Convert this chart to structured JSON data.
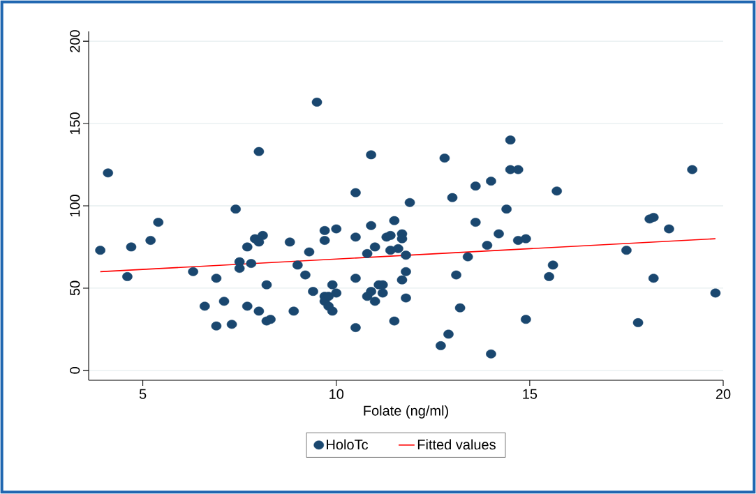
{
  "chart_data": {
    "type": "scatter",
    "xlabel": "Folate (ng/ml)",
    "xlim": [
      3.6,
      20
    ],
    "ylim": [
      -6,
      206
    ],
    "xticks": [
      5,
      10,
      15,
      20
    ],
    "yticks": [
      0,
      50,
      100,
      150,
      200
    ],
    "grid": "y",
    "legend": "bottom",
    "series": [
      {
        "name": "HoloTc",
        "marker": "circle",
        "color": "#1a476f",
        "x": [
          3.9,
          4.1,
          4.6,
          4.7,
          5.2,
          5.4,
          6.3,
          6.6,
          6.9,
          6.9,
          7.1,
          7.3,
          7.4,
          7.5,
          7.5,
          7.7,
          7.7,
          7.8,
          7.9,
          8.0,
          8.0,
          8.0,
          8.1,
          8.2,
          8.2,
          8.3,
          8.8,
          8.9,
          9.0,
          9.2,
          9.3,
          9.4,
          9.5,
          9.7,
          9.7,
          9.7,
          9.7,
          9.8,
          9.8,
          9.9,
          9.9,
          10.0,
          10.0,
          10.5,
          10.5,
          10.5,
          10.5,
          10.8,
          10.8,
          10.9,
          10.9,
          10.9,
          11.0,
          11.0,
          11.1,
          11.2,
          11.2,
          11.3,
          11.4,
          11.4,
          11.5,
          11.5,
          11.6,
          11.7,
          11.7,
          11.7,
          11.8,
          11.8,
          11.8,
          11.9,
          12.7,
          12.8,
          12.9,
          13.0,
          13.1,
          13.2,
          13.4,
          13.6,
          13.6,
          13.9,
          14.0,
          14.0,
          14.2,
          14.4,
          14.5,
          14.5,
          14.7,
          14.7,
          14.9,
          14.9,
          15.5,
          15.6,
          15.7,
          17.5,
          17.8,
          18.1,
          18.2,
          18.2,
          18.6,
          19.2,
          19.8
        ],
        "values": [
          73,
          120,
          57,
          75,
          79,
          90,
          60,
          39,
          56,
          27,
          42,
          28,
          98,
          66,
          62,
          39,
          75,
          65,
          80,
          78,
          133,
          36,
          82,
          52,
          30,
          31,
          78,
          36,
          64,
          58,
          72,
          48,
          163,
          85,
          79,
          45,
          42,
          39,
          45,
          52,
          36,
          86,
          47,
          108,
          81,
          56,
          26,
          71,
          45,
          131,
          88,
          48,
          42,
          75,
          52,
          47,
          52,
          81,
          82,
          73,
          91,
          30,
          74,
          83,
          80,
          55,
          70,
          60,
          44,
          102,
          15,
          129,
          22,
          105,
          58,
          38,
          69,
          112,
          90,
          76,
          115,
          10,
          83,
          98,
          140,
          122,
          122,
          79,
          80,
          31,
          57,
          64,
          109,
          73,
          29,
          92,
          93,
          56,
          86,
          122,
          47
        ]
      },
      {
        "name": "Fitted values",
        "type": "line",
        "color": "#ff0000",
        "x": [
          3.9,
          19.8
        ],
        "values": [
          60,
          80
        ]
      }
    ]
  }
}
